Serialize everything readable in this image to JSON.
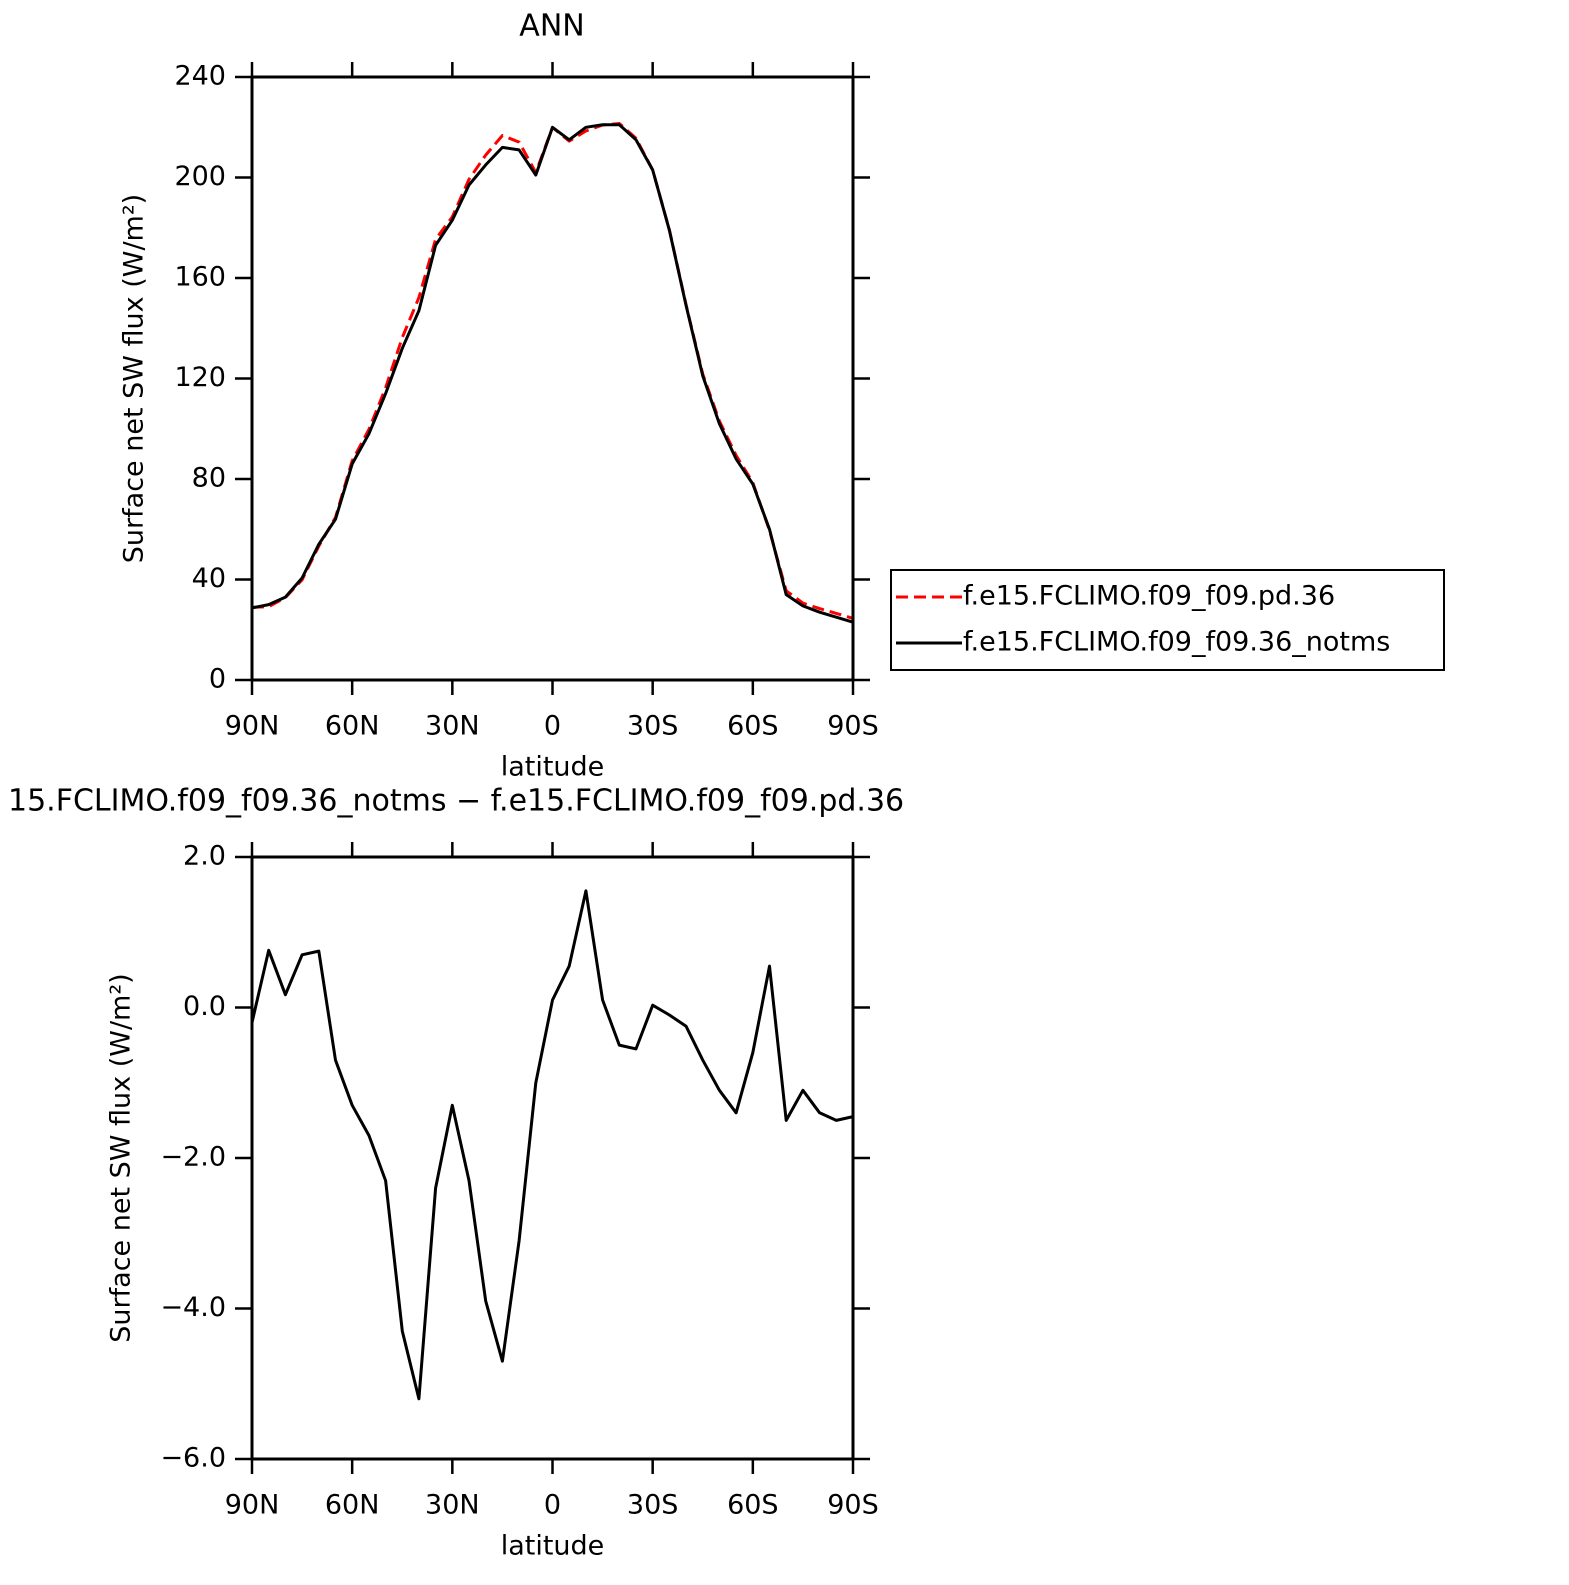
{
  "chart_data": [
    {
      "type": "line",
      "title": "ANN",
      "x_label": "latitude",
      "y_label": "Surface net SW flux (W/m²)",
      "x": [
        90,
        85,
        80,
        75,
        70,
        65,
        60,
        55,
        50,
        45,
        40,
        35,
        30,
        25,
        20,
        15,
        10,
        5,
        0,
        -5,
        -10,
        -15,
        -20,
        -25,
        -30,
        -35,
        -40,
        -45,
        -50,
        -55,
        -60,
        -65,
        -70,
        -75,
        -80,
        -85,
        -90
      ],
      "xlim": [
        90,
        -90
      ],
      "xticks": [
        {
          "value": 90,
          "label": "90N"
        },
        {
          "value": 60,
          "label": "60N"
        },
        {
          "value": 30,
          "label": "30N"
        },
        0,
        {
          "value": -30,
          "label": "30S"
        },
        {
          "value": -60,
          "label": "60S"
        },
        {
          "value": -90,
          "label": "90S"
        }
      ],
      "ylim": [
        0,
        240
      ],
      "yticks": [
        0,
        40,
        80,
        120,
        160,
        200,
        240
      ],
      "legend": "right",
      "series": [
        {
          "name": "f.e15.FCLIMO.f09_f09.pd.36",
          "color": "#ff0000",
          "dashed": true,
          "values": [
            28.9,
            29.2,
            32.8,
            39.9,
            53.3,
            64.7,
            87.3,
            99.7,
            116.3,
            136.3,
            152.2,
            175.4,
            184.3,
            199.3,
            208.9,
            216.7,
            214.1,
            202,
            219.9,
            214.5,
            218.5,
            220.9,
            221.5,
            215.6,
            203,
            179.1,
            149.3,
            121.7,
            103.1,
            89.4,
            78.6,
            59.5,
            35.5,
            30.6,
            28.4,
            26.5,
            24.5
          ]
        },
        {
          "name": "f.e15.FCLIMO.f09_f09.36_notms",
          "color": "#000000",
          "dashed": false,
          "values": [
            28.7,
            30,
            33,
            40.6,
            54,
            64,
            86,
            98,
            114,
            132,
            147,
            173,
            183,
            197,
            205,
            212,
            211,
            201,
            220,
            215,
            220,
            221,
            221,
            215,
            203,
            179,
            149,
            121,
            102,
            88,
            78,
            60,
            34,
            29.5,
            27,
            25,
            23
          ]
        }
      ]
    },
    {
      "type": "line",
      "title": "15.FCLIMO.f09_f09.36_notms − f.e15.FCLIMO.f09_f09.pd.36",
      "x_label": "latitude",
      "y_label": "Surface net SW flux (W/m²)",
      "x": [
        90,
        85,
        80,
        75,
        70,
        65,
        60,
        55,
        50,
        45,
        40,
        35,
        30,
        25,
        20,
        15,
        10,
        5,
        0,
        -5,
        -10,
        -15,
        -20,
        -25,
        -30,
        -35,
        -40,
        -45,
        -50,
        -55,
        -60,
        -65,
        -70,
        -75,
        -80,
        -85,
        -90
      ],
      "xlim": [
        90,
        -90
      ],
      "xticks": [
        {
          "value": 90,
          "label": "90N"
        },
        {
          "value": 60,
          "label": "60N"
        },
        {
          "value": 30,
          "label": "30N"
        },
        0,
        {
          "value": -30,
          "label": "30S"
        },
        {
          "value": -60,
          "label": "60S"
        },
        {
          "value": -90,
          "label": "90S"
        }
      ],
      "ylim": [
        -6,
        2
      ],
      "yticks": [
        {
          "value": -6,
          "label": "−6.0"
        },
        {
          "value": -4,
          "label": "−4.0"
        },
        {
          "value": -2,
          "label": "−2.0"
        },
        {
          "value": 0,
          "label": "0.0"
        },
        {
          "value": 2,
          "label": "2.0"
        }
      ],
      "series": [
        {
          "color": "#000000",
          "dashed": false,
          "values": [
            -0.2,
            0.76,
            0.17,
            0.7,
            0.75,
            -0.7,
            -1.3,
            -1.7,
            -2.3,
            -4.3,
            -5.2,
            -2.4,
            -1.3,
            -2.3,
            -3.9,
            -4.7,
            -3.1,
            -1.0,
            0.1,
            0.55,
            1.55,
            0.1,
            -0.5,
            -0.55,
            0.03,
            -0.1,
            -0.25,
            -0.7,
            -1.1,
            -1.4,
            -0.6,
            0.55,
            -1.5,
            -1.1,
            -1.4,
            -1.5,
            -1.45
          ]
        }
      ]
    }
  ]
}
